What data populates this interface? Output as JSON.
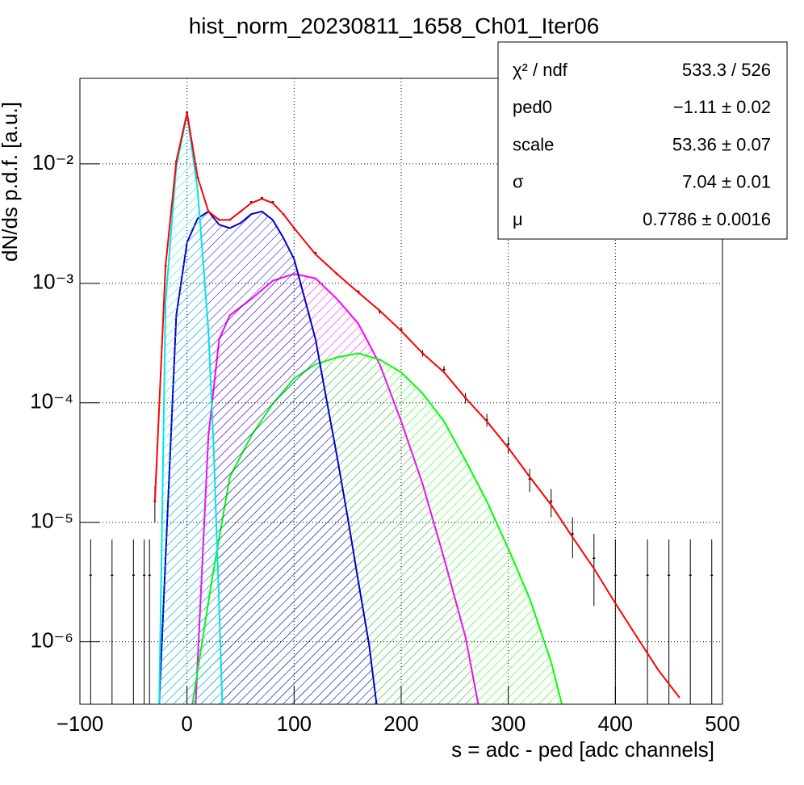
{
  "chart_data": {
    "type": "line",
    "title": "hist_norm_20230811_1658_Ch01_Iter06",
    "x_label": "s = adc - ped [adc channels]",
    "y_label": "dN/ds p.d.f. [a.u.]",
    "log_y": true,
    "grid": true,
    "xlim": [
      -100,
      500
    ],
    "ylim": [
      3e-07,
      0.052
    ],
    "xticks": [
      {
        "value": -100,
        "label": "−100"
      },
      0,
      100,
      200,
      300,
      400,
      500
    ],
    "yticks": [
      {
        "value": 1e-06,
        "label": "10⁻⁶"
      },
      {
        "value": 1e-05,
        "label": "10⁻⁵"
      },
      {
        "value": 0.0001,
        "label": "10⁻⁴"
      },
      {
        "value": 0.001,
        "label": "10⁻³"
      },
      {
        "value": 0.01,
        "label": "10⁻²"
      }
    ],
    "series": [
      {
        "color": "#ff00ff",
        "fill": true,
        "x": [
          8,
          20,
          30,
          40,
          60,
          80,
          100,
          120,
          140,
          160,
          180,
          200,
          220,
          240,
          260,
          272
        ],
        "values": [
          3e-07,
          5.3e-05,
          0.00034,
          0.00054,
          0.00074,
          0.00105,
          0.0012,
          0.0011,
          0.00074,
          0.00046,
          0.00021,
          7e-05,
          2.1e-05,
          5e-06,
          1.1e-06,
          3e-07
        ]
      },
      {
        "color": "#00ff00",
        "fill": true,
        "x": [
          5,
          23,
          40,
          60,
          80,
          100,
          120,
          140,
          160,
          180,
          200,
          220,
          240,
          260,
          280,
          300,
          320,
          340,
          350
        ],
        "values": [
          3e-07,
          3.2e-06,
          2.4e-05,
          5.3e-05,
          9.8e-05,
          0.00016,
          0.00021,
          0.00024,
          0.00026,
          0.00023,
          0.00018,
          0.00012,
          7e-05,
          3.3e-05,
          1.5e-05,
          6e-06,
          2.3e-06,
          6.8e-07,
          3e-07
        ]
      },
      {
        "color": "#0000cc",
        "fill": true,
        "x": [
          -26,
          -20,
          -10,
          0,
          10,
          20,
          30,
          40,
          50,
          60,
          70,
          80,
          90,
          100,
          110,
          120,
          130,
          140,
          150,
          160,
          170,
          177
        ],
        "values": [
          3e-07,
          5e-06,
          0.00054,
          0.0022,
          0.0035,
          0.004,
          0.0031,
          0.0029,
          0.0032,
          0.0038,
          0.004,
          0.0034,
          0.0024,
          0.0016,
          0.00074,
          0.00034,
          0.00011,
          3.6e-05,
          1.1e-05,
          3.2e-06,
          9.5e-07,
          3e-07
        ]
      },
      {
        "color": "#00e5e5",
        "fill": true,
        "x": [
          -26,
          -20,
          -10,
          0,
          10,
          20,
          25,
          30,
          33
        ],
        "values": [
          3e-07,
          0.0007,
          0.0095,
          0.026,
          0.006,
          0.0004,
          4e-05,
          2e-06,
          3e-07
        ]
      },
      {
        "color": "#000000",
        "style": "errorbars",
        "x": [
          -90,
          -70,
          -50,
          -40,
          -35,
          -30,
          -20,
          -10,
          0,
          10,
          20,
          30,
          40,
          50,
          60,
          70,
          80,
          90,
          100,
          120,
          140,
          160,
          180,
          200,
          220,
          240,
          260,
          280,
          300,
          320,
          340,
          360,
          380,
          400,
          430,
          450,
          470,
          490
        ],
        "values": [
          3.6e-06,
          3.6e-06,
          3.6e-06,
          3.6e-06,
          3.6e-06,
          1.5e-05,
          0.0014,
          0.0105,
          0.027,
          0.0077,
          0.004,
          0.0034,
          0.0034,
          0.004,
          0.0048,
          0.0052,
          0.0048,
          0.0038,
          0.0029,
          0.0018,
          0.0012,
          0.00085,
          0.00058,
          0.00041,
          0.00026,
          0.00019,
          0.00011,
          7.2e-05,
          4.5e-05,
          2.3e-05,
          1.5e-05,
          8e-06,
          5e-06,
          3.6e-06,
          3.6e-06,
          3.6e-06,
          3.6e-06,
          3.6e-06
        ],
        "errors": [
          3.6e-06,
          3.6e-06,
          3.6e-06,
          3.6e-06,
          3.6e-06,
          5e-06,
          4e-05,
          0.0001,
          0.0002,
          0.0001,
          8e-05,
          7e-05,
          7e-05,
          8e-05,
          8e-05,
          8e-05,
          8e-05,
          7e-05,
          6e-05,
          4e-05,
          3e-05,
          3e-05,
          2.5e-05,
          2e-05,
          1.6e-05,
          1.4e-05,
          1.1e-05,
          9e-06,
          7e-06,
          5e-06,
          4e-06,
          3e-06,
          3e-06,
          3.6e-06,
          3.6e-06,
          3.6e-06,
          3.6e-06,
          3.6e-06
        ]
      },
      {
        "color": "#ff0000",
        "x": [
          -30,
          -20,
          -10,
          0,
          10,
          20,
          30,
          40,
          50,
          60,
          70,
          80,
          90,
          100,
          120,
          140,
          160,
          180,
          200,
          220,
          240,
          260,
          280,
          300,
          320,
          340,
          360,
          380,
          400,
          420,
          440,
          460
        ],
        "values": [
          1.5e-05,
          0.0014,
          0.0105,
          0.0267,
          0.0077,
          0.004,
          0.0034,
          0.0034,
          0.004,
          0.0047,
          0.0051,
          0.0047,
          0.0038,
          0.0029,
          0.00175,
          0.0012,
          0.00084,
          0.00059,
          0.0004,
          0.00026,
          0.00018,
          0.00011,
          7e-05,
          4.2e-05,
          2.4e-05,
          1.4e-05,
          7.5e-06,
          4.1e-06,
          2.1e-06,
          1.1e-06,
          5.8e-07,
          3.4e-07
        ]
      }
    ],
    "stats": {
      "rows": [
        {
          "label": "χ² / ndf",
          "value": "533.3 / 526"
        },
        {
          "label": "ped0",
          "value": "−1.11 ± 0.02"
        },
        {
          "label": "scale",
          "value": "53.36 ± 0.07"
        },
        {
          "label": "σ",
          "value": "7.04 ± 0.01"
        },
        {
          "label": "μ",
          "value": "0.7786 ± 0.0016"
        }
      ]
    }
  }
}
